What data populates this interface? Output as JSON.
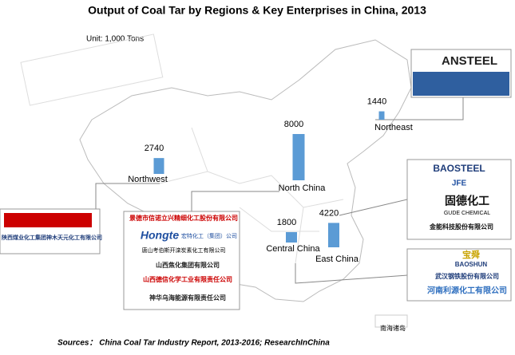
{
  "chart_data": {
    "type": "bar",
    "title": "Output of Coal Tar by Regions & Key Enterprises in China, 2013",
    "unit": "Unit: 1,000  Tons",
    "categories": [
      "Northwest",
      "North China",
      "Northeast",
      "Central China",
      "East China"
    ],
    "values": [
      2740,
      8000,
      1440,
      1800,
      4220
    ],
    "color": "#5b9bd5",
    "source": "Sources：  China Coal Tar Industry Report, 2013-2016;  ResearchInChina",
    "map_note": "南海诸岛"
  },
  "logos": {
    "northeast": [
      "ANSTEEL"
    ],
    "east": [
      "BAOSTEEL",
      "JFE",
      "固德化工",
      "GUDE CHEMICAL",
      "金能科技股份有限公司"
    ],
    "central": [
      "宝舜",
      "BAOSHUN",
      "武汉钢铁股份有限公司",
      "河南利源化工有限公司"
    ],
    "northwest": [
      "陕西煤业化工集团神木天元化工有限公司"
    ],
    "north": [
      "景德市信诺立兴精细化工股份有限公司",
      "Hongte",
      "宏特化工（集团）公司",
      "唐山考伯斯开滦炭素化工有限公司",
      "山西焦化集团有限公司",
      "山西德信化学工业有限责任公司",
      "神华乌海能源有限责任公司"
    ]
  }
}
